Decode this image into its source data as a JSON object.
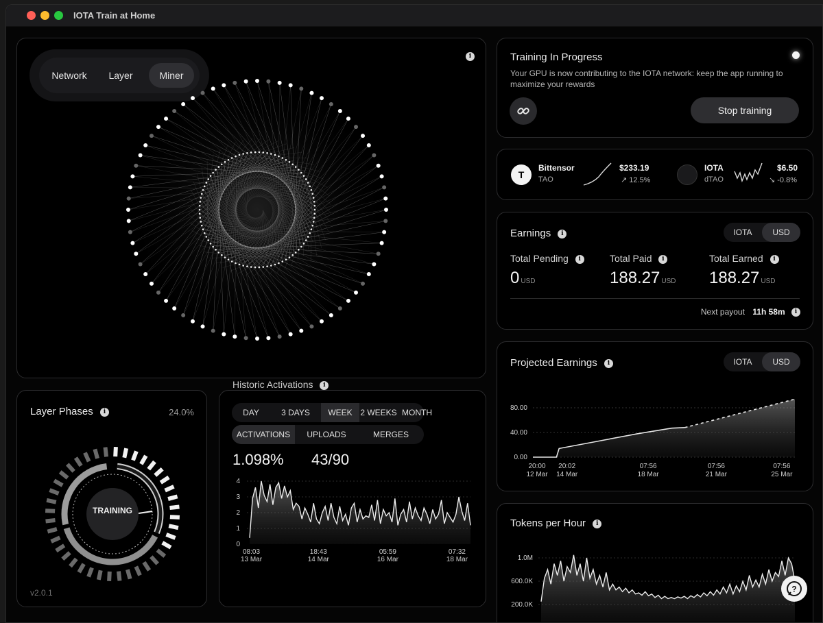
{
  "window": {
    "title": "IOTA Train at Home"
  },
  "viz": {
    "tabs": [
      "Network",
      "Layer",
      "Miner"
    ],
    "active_tab": "Miner"
  },
  "training": {
    "title": "Training In Progress",
    "description": "Your GPU is now contributing to the IOTA network: keep the app running to maximize your rewards",
    "stop_label": "Stop training"
  },
  "tokens": [
    {
      "name": "Bittensor",
      "symbol": "TAO",
      "price": "$233.19",
      "change": "↗ 12.5%",
      "icon_text": "T"
    },
    {
      "name": "IOTA",
      "symbol": "dTAO",
      "price": "$6.50",
      "change": "↘ -0.8%"
    }
  ],
  "earnings": {
    "title": "Earnings",
    "toggle": [
      "IOTA",
      "USD"
    ],
    "active_currency": "USD",
    "pending_label": "Total Pending",
    "pending_value": "0",
    "paid_label": "Total Paid",
    "paid_value": "188.27",
    "earned_label": "Total Earned",
    "earned_value": "188.27",
    "unit": "USD",
    "next_payout_label": "Next payout",
    "next_payout_value": "11h 58m"
  },
  "projected": {
    "title": "Projected Earnings",
    "toggle": [
      "IOTA",
      "USD"
    ],
    "active_currency": "USD"
  },
  "tokens_per_hour": {
    "title": "Tokens per Hour"
  },
  "layer_phases": {
    "title": "Layer Phases",
    "percent": "24.0%",
    "center_label": "TRAINING",
    "version": "v2.0.1"
  },
  "historic": {
    "title": "Historic Activations",
    "ranges": [
      "DAY",
      "3 DAYS",
      "WEEK",
      "2 WEEKS",
      "MONTH"
    ],
    "active_range": "WEEK",
    "metrics": [
      "ACTIVATIONS",
      "UPLOADS",
      "MERGES"
    ],
    "active_metric": "ACTIVATIONS",
    "stat_primary": "1.098%",
    "stat_secondary": "43/90"
  },
  "chart_data": [
    {
      "type": "area",
      "name": "projected-earnings",
      "x": [
        "20:00 12 Mar",
        "20:02 14 Mar",
        "07:56 18 Mar",
        "07:56 21 Mar",
        "07:56 25 Mar"
      ],
      "x_ticks": [
        [
          "20:00",
          "12 Mar"
        ],
        [
          "20:02",
          "14 Mar"
        ],
        [
          "07:56",
          "18 Mar"
        ],
        [
          "07:56",
          "21 Mar"
        ],
        [
          "07:56",
          "25 Mar"
        ]
      ],
      "y_ticks": [
        "0.00",
        "40.00",
        "80.00"
      ],
      "ylim": [
        0,
        100
      ],
      "series": [
        {
          "style": "solid",
          "values": [
            [
              0,
              0
            ],
            [
              0.09,
              0
            ],
            [
              0.1,
              14
            ],
            [
              0.25,
              26
            ],
            [
              0.4,
              38
            ],
            [
              0.53,
              47
            ],
            [
              0.58,
              48
            ]
          ]
        },
        {
          "style": "dashed",
          "values": [
            [
              0.58,
              48
            ],
            [
              1.0,
              94
            ]
          ]
        }
      ]
    },
    {
      "type": "area",
      "name": "historic-activations",
      "x_ticks": [
        [
          "08:03",
          "13 Mar"
        ],
        [
          "18:43",
          "14 Mar"
        ],
        [
          "05:59",
          "16 Mar"
        ],
        [
          "07:32",
          "18 Mar"
        ]
      ],
      "y_ticks": [
        "0",
        "1",
        "2",
        "3",
        "4"
      ],
      "ylim": [
        0,
        4
      ],
      "values": [
        0.4,
        2.9,
        3.6,
        2.3,
        4.0,
        3.1,
        2.7,
        3.8,
        2.5,
        3.6,
        3.9,
        2.9,
        3.7,
        3.0,
        3.4,
        2.2,
        2.6,
        2.4,
        1.6,
        2.3,
        1.9,
        1.4,
        2.6,
        1.6,
        1.3,
        2.0,
        2.4,
        1.5,
        2.6,
        1.7,
        1.3,
        2.4,
        1.5,
        1.9,
        1.2,
        2.3,
        2.6,
        1.4,
        2.2,
        1.6,
        1.8,
        1.7,
        2.5,
        1.5,
        2.8,
        1.3,
        2.2,
        1.8,
        2.0,
        1.4,
        2.9,
        1.2,
        1.9,
        2.2,
        1.4,
        2.7,
        1.6,
        2.3,
        1.8,
        1.5,
        2.3,
        1.9,
        1.3,
        2.2,
        1.6,
        1.9,
        2.8,
        1.3,
        2.0,
        1.7,
        1.4,
        1.9,
        3.0,
        2.1,
        1.5,
        2.6,
        1.2
      ]
    },
    {
      "type": "area",
      "name": "tokens-per-hour",
      "y_ticks": [
        "1.0M",
        "600.0K",
        "200.0K"
      ],
      "ylim": [
        0,
        1.2
      ],
      "values": [
        0.25,
        0.65,
        0.8,
        0.55,
        0.9,
        0.7,
        0.95,
        0.6,
        0.85,
        0.75,
        1.05,
        0.7,
        0.9,
        0.6,
        1.0,
        0.65,
        0.8,
        0.55,
        0.7,
        0.5,
        0.75,
        0.45,
        0.55,
        0.45,
        0.5,
        0.42,
        0.48,
        0.4,
        0.45,
        0.38,
        0.4,
        0.36,
        0.42,
        0.35,
        0.38,
        0.32,
        0.36,
        0.3,
        0.34,
        0.3,
        0.32,
        0.3,
        0.33,
        0.31,
        0.34,
        0.3,
        0.35,
        0.32,
        0.37,
        0.33,
        0.4,
        0.35,
        0.42,
        0.36,
        0.45,
        0.38,
        0.5,
        0.4,
        0.55,
        0.38,
        0.52,
        0.42,
        0.6,
        0.45,
        0.7,
        0.5,
        0.62,
        0.5,
        0.72,
        0.55,
        0.8,
        0.6,
        0.75,
        0.68,
        0.95,
        0.7,
        1.0,
        0.9,
        0.6
      ]
    }
  ]
}
